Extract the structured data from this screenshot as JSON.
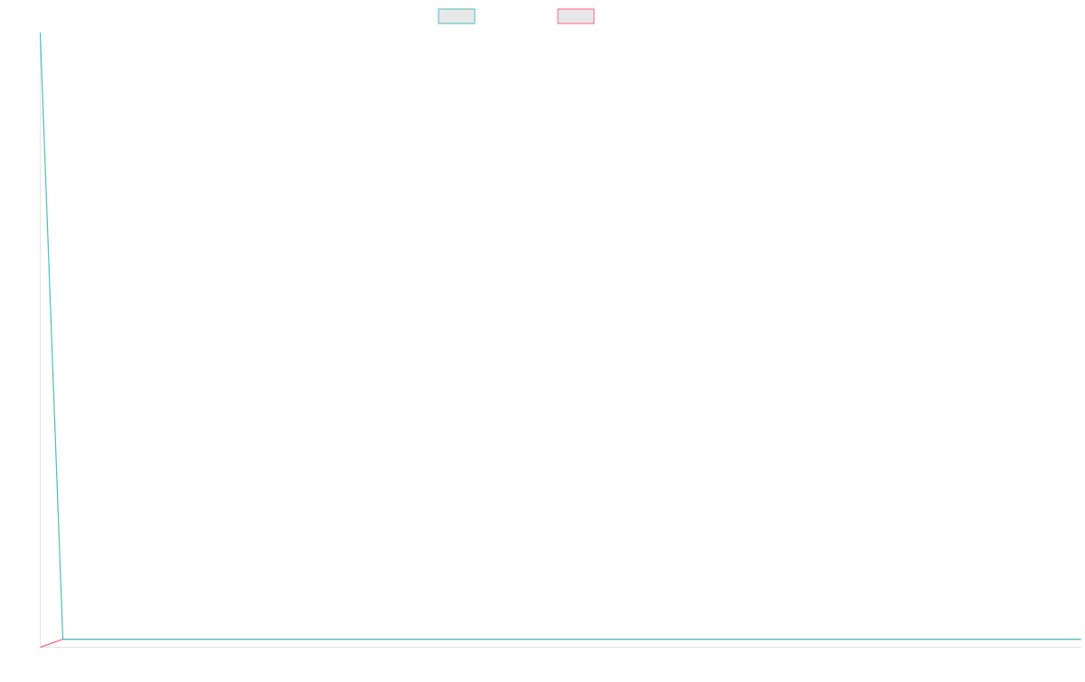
{
  "chart_data": {
    "type": "line",
    "title": "",
    "xlabel": "",
    "ylabel": "",
    "x_count": 47,
    "ylim": [
      0,
      100
    ],
    "grid": false,
    "legend": "top",
    "series": [
      {
        "color": "#4bc0c0",
        "values": [
          100,
          1.3,
          1.3,
          1.3,
          1.3,
          1.3,
          1.3,
          1.3,
          1.3,
          1.3,
          1.3,
          1.3,
          1.3,
          1.3,
          1.3,
          1.3,
          1.3,
          1.3,
          1.3,
          1.3,
          1.3,
          1.3,
          1.3,
          1.3,
          1.3,
          1.3,
          1.3,
          1.3,
          1.3,
          1.3,
          1.3,
          1.3,
          1.3,
          1.3,
          1.3,
          1.3,
          1.3,
          1.3,
          1.3,
          1.3,
          1.3,
          1.3,
          1.3,
          1.3,
          1.3,
          1.3,
          1.3
        ]
      },
      {
        "color": "#ff6384",
        "values": [
          0,
          1.3,
          1.3,
          1.3,
          1.3,
          1.3,
          1.3,
          1.3,
          1.3,
          1.3,
          1.3,
          1.3,
          1.3,
          1.3,
          1.3,
          1.3,
          1.3,
          1.3,
          1.3,
          1.3,
          1.3,
          1.3,
          1.3,
          1.3,
          1.3,
          1.3,
          1.3,
          1.3,
          1.3,
          1.3,
          1.3,
          1.3,
          1.3,
          1.3,
          1.3,
          1.3,
          1.3,
          1.3,
          1.3,
          1.3,
          1.3,
          1.3,
          1.3,
          1.3,
          1.3,
          1.3,
          1.3
        ]
      }
    ]
  }
}
